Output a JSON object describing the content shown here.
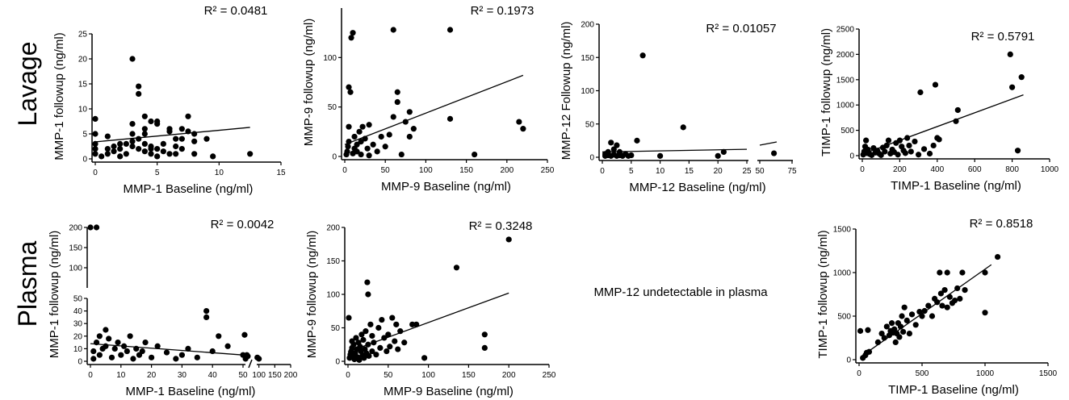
{
  "row_labels": [
    "Lavage",
    "Plasma"
  ],
  "note": "MMP-12 undetectable in plasma",
  "chart_data": [
    {
      "type": "scatter",
      "xlabel": "MMP-1 Baseline (ng/ml)",
      "ylabel": "MMP-1 followup (ng/ml)",
      "r2": "R² = 0.0481",
      "xlim": [
        0,
        15
      ],
      "ylim": [
        0,
        25
      ],
      "xticks": [
        0,
        5,
        10,
        15
      ],
      "yticks": [
        0,
        5,
        10,
        15,
        20,
        25
      ],
      "fit": [
        [
          0,
          3.4
        ],
        [
          12.5,
          6.3
        ]
      ],
      "points": [
        [
          0,
          1
        ],
        [
          0,
          2
        ],
        [
          0,
          3
        ],
        [
          0,
          5
        ],
        [
          0,
          8
        ],
        [
          0.5,
          0.5
        ],
        [
          1,
          1
        ],
        [
          1,
          2
        ],
        [
          1,
          4.5
        ],
        [
          1.5,
          1.5
        ],
        [
          1.5,
          2.5
        ],
        [
          2,
          2
        ],
        [
          2,
          3
        ],
        [
          2,
          0.5
        ],
        [
          2.5,
          3
        ],
        [
          2.5,
          1
        ],
        [
          3,
          20
        ],
        [
          3,
          5
        ],
        [
          3,
          2.5
        ],
        [
          3,
          3.5
        ],
        [
          3,
          7
        ],
        [
          3.5,
          14.5
        ],
        [
          3.5,
          13
        ],
        [
          3.5,
          4
        ],
        [
          3.5,
          2
        ],
        [
          4,
          3
        ],
        [
          4,
          1.5
        ],
        [
          4,
          5
        ],
        [
          4,
          8.5
        ],
        [
          4,
          6
        ],
        [
          4.5,
          2
        ],
        [
          4.5,
          2.5
        ],
        [
          4.5,
          7.5
        ],
        [
          4.5,
          1
        ],
        [
          5,
          7
        ],
        [
          5,
          7.5
        ],
        [
          5,
          2
        ],
        [
          5,
          0.5
        ],
        [
          5.5,
          1.5
        ],
        [
          5.5,
          3
        ],
        [
          6,
          5.5
        ],
        [
          6,
          6
        ],
        [
          6,
          1
        ],
        [
          6.5,
          4
        ],
        [
          6.5,
          2.5
        ],
        [
          6.5,
          1
        ],
        [
          7,
          6
        ],
        [
          7,
          4
        ],
        [
          7,
          2
        ],
        [
          7.5,
          8.5
        ],
        [
          7.5,
          5.5
        ],
        [
          8,
          1
        ],
        [
          8,
          5
        ],
        [
          8,
          3.5
        ],
        [
          9,
          4
        ],
        [
          9.5,
          0.5
        ],
        [
          12.5,
          1
        ]
      ]
    },
    {
      "type": "scatter",
      "xlabel": "MMP-9 Baseline (ng/ml)",
      "ylabel": "MMP-9 followup (ng/ml)",
      "r2": "R² = 0.1973",
      "xlim": [
        0,
        250
      ],
      "ylim": [
        0,
        150
      ],
      "xticks": [
        0,
        50,
        100,
        150,
        200,
        250
      ],
      "yticks": [
        0,
        50,
        100
      ],
      "fit": [
        [
          0,
          12
        ],
        [
          220,
          82
        ]
      ],
      "points": [
        [
          2,
          2
        ],
        [
          3,
          5
        ],
        [
          4,
          10
        ],
        [
          5,
          15
        ],
        [
          5,
          30
        ],
        [
          5,
          70
        ],
        [
          7,
          65
        ],
        [
          8,
          120
        ],
        [
          10,
          125
        ],
        [
          10,
          3
        ],
        [
          12,
          8
        ],
        [
          12,
          20
        ],
        [
          15,
          5
        ],
        [
          15,
          12
        ],
        [
          18,
          25
        ],
        [
          20,
          2
        ],
        [
          20,
          15
        ],
        [
          22,
          30
        ],
        [
          25,
          18
        ],
        [
          28,
          8
        ],
        [
          30,
          32
        ],
        [
          30,
          1
        ],
        [
          35,
          12
        ],
        [
          40,
          5
        ],
        [
          45,
          20
        ],
        [
          50,
          10
        ],
        [
          55,
          22
        ],
        [
          60,
          128
        ],
        [
          60,
          40
        ],
        [
          65,
          65
        ],
        [
          65,
          55
        ],
        [
          70,
          2
        ],
        [
          75,
          35
        ],
        [
          80,
          20
        ],
        [
          80,
          45
        ],
        [
          85,
          28
        ],
        [
          130,
          128
        ],
        [
          130,
          38
        ],
        [
          160,
          2
        ],
        [
          215,
          35
        ],
        [
          220,
          28
        ]
      ]
    },
    {
      "type": "scatter",
      "xlabel": "MMP-12 Baseline (ng/ml)",
      "ylabel": "MMP-12 Followup (ng/ml)",
      "r2": "R² = 0.01057",
      "xlim": [
        0,
        75
      ],
      "ylim": [
        0,
        200
      ],
      "xticks": [
        0,
        5,
        10,
        15,
        20,
        25,
        50,
        75
      ],
      "yticks": [
        0,
        50,
        100,
        150,
        200
      ],
      "fit": [
        [
          0,
          8
        ],
        [
          25,
          12
        ],
        [
          50,
          15
        ],
        [
          75,
          18
        ]
      ],
      "points": [
        [
          0.5,
          2
        ],
        [
          0.5,
          5
        ],
        [
          1,
          3
        ],
        [
          1,
          8
        ],
        [
          1.5,
          2
        ],
        [
          1.5,
          22
        ],
        [
          2,
          4
        ],
        [
          2,
          12
        ],
        [
          2.5,
          2
        ],
        [
          2.5,
          18
        ],
        [
          3,
          3
        ],
        [
          3,
          8
        ],
        [
          3.5,
          2
        ],
        [
          4,
          5
        ],
        [
          4.5,
          2
        ],
        [
          5,
          3
        ],
        [
          6,
          25
        ],
        [
          7,
          153
        ],
        [
          10,
          2
        ],
        [
          14,
          45
        ],
        [
          20,
          2
        ],
        [
          21,
          8
        ],
        [
          61,
          6
        ]
      ]
    },
    {
      "type": "scatter",
      "xlabel": "TIMP-1 Baseline (ng/ml)",
      "ylabel": "TIMP-1 followup (ng/ml)",
      "r2": "R² = 0.5791",
      "xlim": [
        0,
        1000
      ],
      "ylim": [
        0,
        2500
      ],
      "xticks": [
        0,
        200,
        400,
        600,
        800,
        1000
      ],
      "yticks": [
        0,
        500,
        1000,
        1500,
        2000,
        2500
      ],
      "fit": [
        [
          0,
          30
        ],
        [
          860,
          1200
        ]
      ],
      "points": [
        [
          5,
          20
        ],
        [
          10,
          80
        ],
        [
          15,
          180
        ],
        [
          20,
          300
        ],
        [
          25,
          50
        ],
        [
          30,
          120
        ],
        [
          40,
          30
        ],
        [
          50,
          10
        ],
        [
          60,
          150
        ],
        [
          70,
          60
        ],
        [
          80,
          100
        ],
        [
          90,
          40
        ],
        [
          100,
          10
        ],
        [
          110,
          160
        ],
        [
          120,
          80
        ],
        [
          130,
          200
        ],
        [
          140,
          300
        ],
        [
          150,
          40
        ],
        [
          160,
          120
        ],
        [
          170,
          70
        ],
        [
          180,
          250
        ],
        [
          190,
          20
        ],
        [
          200,
          300
        ],
        [
          210,
          180
        ],
        [
          220,
          100
        ],
        [
          230,
          50
        ],
        [
          240,
          350
        ],
        [
          250,
          200
        ],
        [
          260,
          80
        ],
        [
          280,
          280
        ],
        [
          300,
          20
        ],
        [
          310,
          1250
        ],
        [
          330,
          130
        ],
        [
          360,
          40
        ],
        [
          380,
          200
        ],
        [
          390,
          1400
        ],
        [
          400,
          350
        ],
        [
          410,
          320
        ],
        [
          500,
          680
        ],
        [
          510,
          900
        ],
        [
          790,
          2000
        ],
        [
          800,
          1350
        ],
        [
          830,
          100
        ],
        [
          850,
          1550
        ]
      ]
    },
    {
      "type": "scatter",
      "xlabel": "MMP-1 Baseline (ng/ml)",
      "ylabel": "MMP-1 followup (ng/ml)",
      "r2": "R² = 0.0042",
      "xlim": [
        0,
        200
      ],
      "ylim": [
        0,
        200
      ],
      "xticks": [
        0,
        10,
        20,
        30,
        40,
        50,
        100,
        150,
        200
      ],
      "yticks": [
        0,
        10,
        20,
        30,
        40,
        50,
        100,
        150,
        200
      ],
      "fit": [
        [
          0,
          14
        ],
        [
          50,
          5
        ]
      ],
      "points": [
        [
          0,
          200
        ],
        [
          1,
          2
        ],
        [
          1,
          8
        ],
        [
          2,
          15
        ],
        [
          2,
          200
        ],
        [
          3,
          20
        ],
        [
          3,
          5
        ],
        [
          4,
          10
        ],
        [
          5,
          25
        ],
        [
          5,
          12
        ],
        [
          6,
          18
        ],
        [
          7,
          3
        ],
        [
          8,
          10
        ],
        [
          9,
          15
        ],
        [
          10,
          5
        ],
        [
          11,
          12
        ],
        [
          12,
          8
        ],
        [
          13,
          20
        ],
        [
          14,
          2
        ],
        [
          15,
          10
        ],
        [
          16,
          5
        ],
        [
          17,
          8
        ],
        [
          18,
          15
        ],
        [
          20,
          3
        ],
        [
          22,
          12
        ],
        [
          25,
          7
        ],
        [
          28,
          2
        ],
        [
          30,
          5
        ],
        [
          32,
          10
        ],
        [
          35,
          3
        ],
        [
          38,
          40
        ],
        [
          38,
          35
        ],
        [
          40,
          8
        ],
        [
          42,
          20
        ],
        [
          45,
          12
        ],
        [
          50,
          5
        ],
        [
          55,
          21
        ],
        [
          58,
          2
        ],
        [
          62,
          5
        ],
        [
          65,
          4
        ],
        [
          95,
          3
        ],
        [
          100,
          2
        ]
      ]
    },
    {
      "type": "scatter",
      "xlabel": "MMP-9 Baseline (ng/ml)",
      "ylabel": "MMP-9 followup (ng/ml)",
      "r2": "R² = 0.3248",
      "xlim": [
        0,
        250
      ],
      "ylim": [
        0,
        200
      ],
      "xticks": [
        0,
        50,
        100,
        150,
        200,
        250
      ],
      "yticks": [
        0,
        50,
        100,
        150,
        200
      ],
      "fit": [
        [
          0,
          14
        ],
        [
          200,
          102
        ]
      ],
      "points": [
        [
          1,
          65
        ],
        [
          2,
          5
        ],
        [
          3,
          10
        ],
        [
          4,
          15
        ],
        [
          5,
          20
        ],
        [
          5,
          30
        ],
        [
          6,
          8
        ],
        [
          7,
          25
        ],
        [
          8,
          3
        ],
        [
          9,
          12
        ],
        [
          10,
          35
        ],
        [
          11,
          18
        ],
        [
          12,
          6
        ],
        [
          13,
          28
        ],
        [
          14,
          2
        ],
        [
          15,
          22
        ],
        [
          16,
          15
        ],
        [
          17,
          40
        ],
        [
          18,
          9
        ],
        [
          19,
          32
        ],
        [
          20,
          5
        ],
        [
          21,
          18
        ],
        [
          22,
          45
        ],
        [
          23,
          12
        ],
        [
          24,
          118
        ],
        [
          25,
          25
        ],
        [
          25,
          100
        ],
        [
          26,
          8
        ],
        [
          28,
          55
        ],
        [
          30,
          15
        ],
        [
          30,
          38
        ],
        [
          32,
          28
        ],
        [
          35,
          10
        ],
        [
          38,
          50
        ],
        [
          40,
          20
        ],
        [
          42,
          62
        ],
        [
          45,
          35
        ],
        [
          48,
          15
        ],
        [
          50,
          40
        ],
        [
          52,
          22
        ],
        [
          55,
          65
        ],
        [
          58,
          30
        ],
        [
          60,
          55
        ],
        [
          62,
          18
        ],
        [
          65,
          45
        ],
        [
          70,
          28
        ],
        [
          80,
          55
        ],
        [
          85,
          55
        ],
        [
          95,
          5
        ],
        [
          135,
          140
        ],
        [
          170,
          40
        ],
        [
          170,
          20
        ],
        [
          200,
          182
        ]
      ]
    },
    {
      "type": "scatter",
      "xlabel": "TIMP-1 Baseline (ng/ml)",
      "ylabel": "TIMP-1 followup (ng/ml)",
      "r2": "R² = 0.8518",
      "xlim": [
        0,
        1500
      ],
      "ylim": [
        0,
        1500
      ],
      "xticks": [
        0,
        500,
        1000,
        1500
      ],
      "yticks": [
        0,
        500,
        1000,
        1500
      ],
      "fit": [
        [
          20,
          40
        ],
        [
          1050,
          1090
        ]
      ],
      "points": [
        [
          10,
          330
        ],
        [
          30,
          20
        ],
        [
          50,
          50
        ],
        [
          60,
          80
        ],
        [
          70,
          340
        ],
        [
          80,
          90
        ],
        [
          150,
          200
        ],
        [
          180,
          300
        ],
        [
          200,
          250
        ],
        [
          220,
          380
        ],
        [
          240,
          280
        ],
        [
          250,
          330
        ],
        [
          260,
          420
        ],
        [
          270,
          310
        ],
        [
          280,
          350
        ],
        [
          290,
          200
        ],
        [
          300,
          300
        ],
        [
          310,
          420
        ],
        [
          320,
          260
        ],
        [
          330,
          380
        ],
        [
          340,
          500
        ],
        [
          350,
          320
        ],
        [
          360,
          600
        ],
        [
          380,
          450
        ],
        [
          400,
          300
        ],
        [
          420,
          520
        ],
        [
          450,
          400
        ],
        [
          480,
          550
        ],
        [
          500,
          500
        ],
        [
          520,
          560
        ],
        [
          550,
          620
        ],
        [
          580,
          500
        ],
        [
          600,
          700
        ],
        [
          620,
          660
        ],
        [
          640,
          1000
        ],
        [
          650,
          760
        ],
        [
          660,
          620
        ],
        [
          680,
          800
        ],
        [
          700,
          1000
        ],
        [
          700,
          600
        ],
        [
          720,
          720
        ],
        [
          740,
          650
        ],
        [
          760,
          680
        ],
        [
          780,
          820
        ],
        [
          800,
          700
        ],
        [
          820,
          1000
        ],
        [
          840,
          800
        ],
        [
          1000,
          1000
        ],
        [
          1000,
          540
        ],
        [
          1100,
          1180
        ]
      ]
    }
  ]
}
